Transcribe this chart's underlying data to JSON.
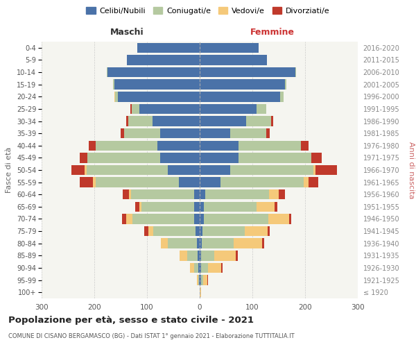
{
  "age_groups": [
    "100+",
    "95-99",
    "90-94",
    "85-89",
    "80-84",
    "75-79",
    "70-74",
    "65-69",
    "60-64",
    "55-59",
    "50-54",
    "45-49",
    "40-44",
    "35-39",
    "30-34",
    "25-29",
    "20-24",
    "15-19",
    "10-14",
    "5-9",
    "0-4"
  ],
  "birth_years": [
    "≤ 1920",
    "1921-1925",
    "1926-1930",
    "1931-1935",
    "1936-1940",
    "1941-1945",
    "1946-1950",
    "1951-1955",
    "1956-1960",
    "1961-1965",
    "1966-1970",
    "1971-1975",
    "1976-1980",
    "1981-1985",
    "1986-1990",
    "1991-1995",
    "1996-2000",
    "2001-2005",
    "2006-2010",
    "2011-2015",
    "2016-2020"
  ],
  "colors": {
    "celibi": "#4a72a8",
    "coniugati": "#b5c9a0",
    "vedovi": "#f5c97a",
    "divorziati": "#c0392b"
  },
  "maschi": {
    "celibi": [
      0,
      1,
      2,
      4,
      5,
      8,
      10,
      10,
      10,
      40,
      60,
      75,
      80,
      75,
      90,
      115,
      155,
      162,
      175,
      138,
      118
    ],
    "coniugati": [
      0,
      2,
      8,
      20,
      55,
      80,
      118,
      100,
      120,
      158,
      155,
      138,
      118,
      68,
      45,
      14,
      5,
      2,
      1,
      0,
      0
    ],
    "vedovi": [
      0,
      2,
      8,
      14,
      14,
      9,
      11,
      5,
      4,
      4,
      4,
      0,
      0,
      0,
      0,
      0,
      2,
      0,
      0,
      0,
      0
    ],
    "divorziati": [
      0,
      0,
      0,
      0,
      0,
      8,
      8,
      8,
      12,
      25,
      25,
      14,
      12,
      7,
      5,
      2,
      0,
      0,
      0,
      0,
      0
    ]
  },
  "femmine": {
    "celibi": [
      0,
      2,
      2,
      3,
      4,
      5,
      8,
      8,
      10,
      40,
      58,
      74,
      74,
      58,
      88,
      108,
      152,
      162,
      182,
      128,
      112
    ],
    "coniugati": [
      0,
      4,
      14,
      25,
      60,
      80,
      122,
      100,
      122,
      158,
      158,
      138,
      118,
      68,
      48,
      18,
      7,
      3,
      1,
      0,
      0
    ],
    "vedovi": [
      2,
      8,
      25,
      40,
      55,
      44,
      40,
      34,
      18,
      9,
      4,
      0,
      0,
      0,
      0,
      0,
      0,
      0,
      0,
      0,
      0
    ],
    "divorziati": [
      0,
      2,
      2,
      4,
      4,
      4,
      4,
      5,
      12,
      18,
      40,
      20,
      14,
      7,
      4,
      0,
      0,
      0,
      0,
      0,
      0
    ]
  },
  "xlim": 300,
  "title": "Popolazione per età, sesso e stato civile - 2021",
  "subtitle": "COMUNE DI CISANO BERGAMASCO (BG) - Dati ISTAT 1° gennaio 2021 - Elaborazione TUTTITALIA.IT",
  "ylabel_left": "Fasce di età",
  "ylabel_right": "Anni di nascita",
  "xlabel_left": "Maschi",
  "xlabel_right": "Femmine",
  "bg_color": "#f5f5f0"
}
